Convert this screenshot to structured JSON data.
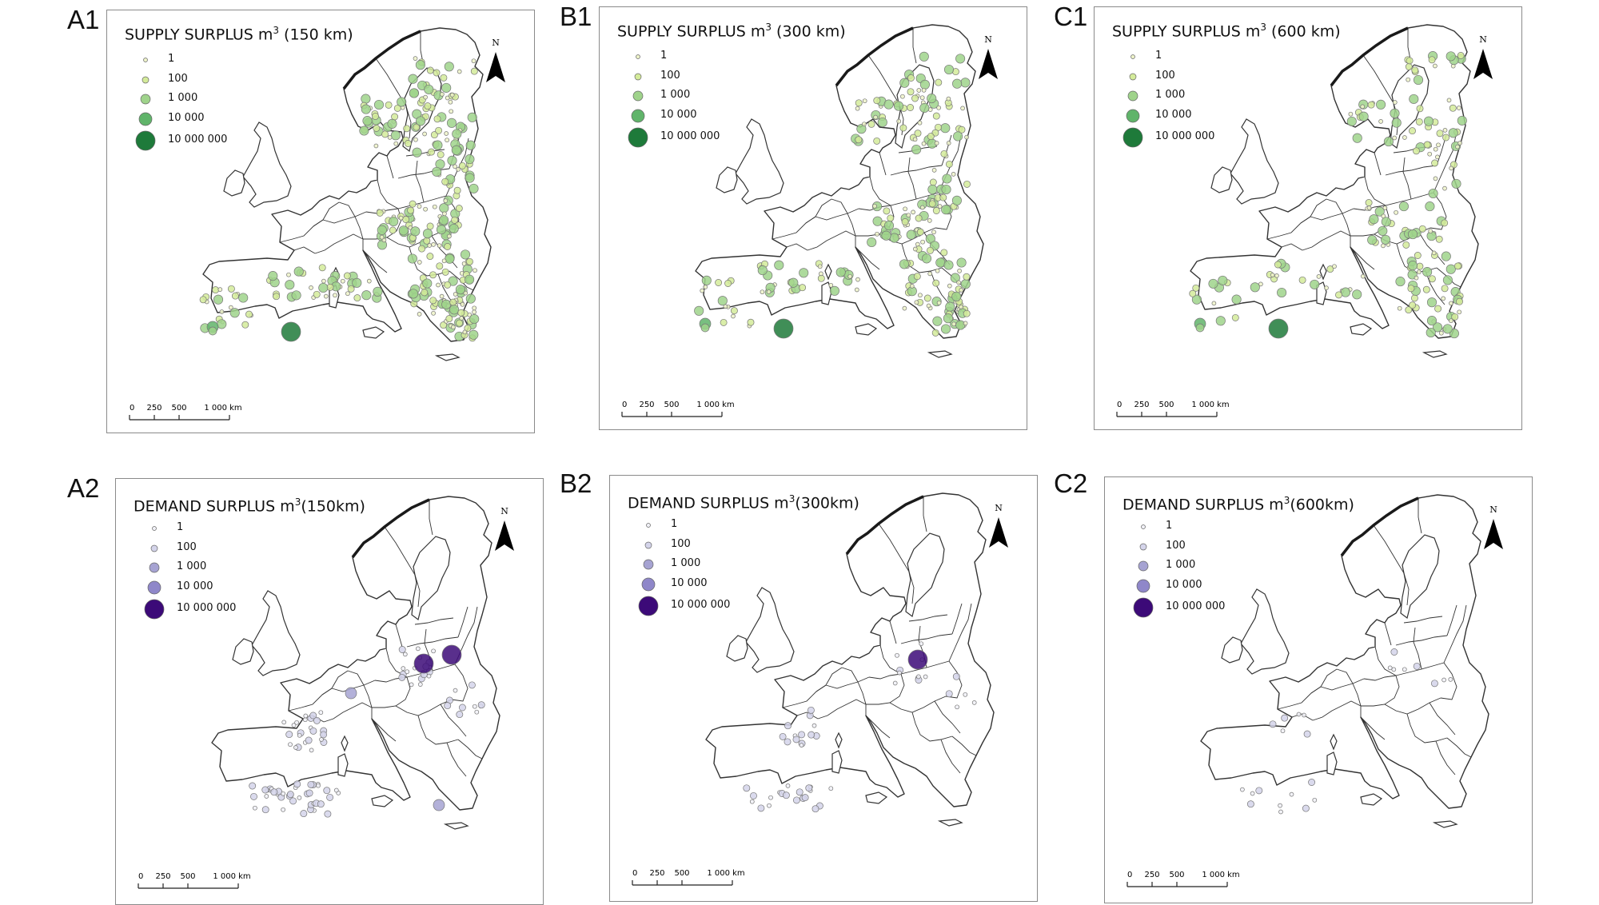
{
  "colors": {
    "supply_small": "#eef3c9",
    "supply_mid": "#d4eb9a",
    "supply_large": "#9fd38b",
    "supply_xl": "#60b46a",
    "supply_max": "#1e7a3a",
    "demand_small": "#f1f1f7",
    "demand_mid": "#d4d4ea",
    "demand_large": "#a6a3d2",
    "demand_xl": "#8f87c9",
    "demand_max": "#3c0a78",
    "map_line": "#333333",
    "coast_dark": "#1a1a1a"
  },
  "legend_values": [
    "1",
    "100",
    "1 000",
    "10 000",
    "10 000 000"
  ],
  "scale_labels": [
    "0",
    "250",
    "500",
    "1 000 km"
  ],
  "north_label": "N",
  "panels": [
    {
      "id": "A1",
      "title_prefix": "SUPPLY SURPLUS m",
      "title_sup": "3",
      "title_suffix": " (150 km)",
      "kind": "supply"
    },
    {
      "id": "B1",
      "title_prefix": "SUPPLY SURPLUS m",
      "title_sup": "3",
      "title_suffix": " (300 km)",
      "kind": "supply"
    },
    {
      "id": "C1",
      "title_prefix": "SUPPLY SURPLUS m",
      "title_sup": "3",
      "title_suffix": " (600 km)",
      "kind": "supply"
    },
    {
      "id": "A2",
      "title_prefix": "DEMAND SURPLUS m",
      "title_sup": "3",
      "title_suffix": "(150km)",
      "kind": "demand"
    },
    {
      "id": "B2",
      "title_prefix": "DEMAND SURPLUS m",
      "title_sup": "3",
      "title_suffix": "(300km)",
      "kind": "demand"
    },
    {
      "id": "C2",
      "title_prefix": "DEMAND SURPLUS m",
      "title_sup": "3",
      "title_suffix": "(600km)",
      "kind": "demand"
    }
  ]
}
